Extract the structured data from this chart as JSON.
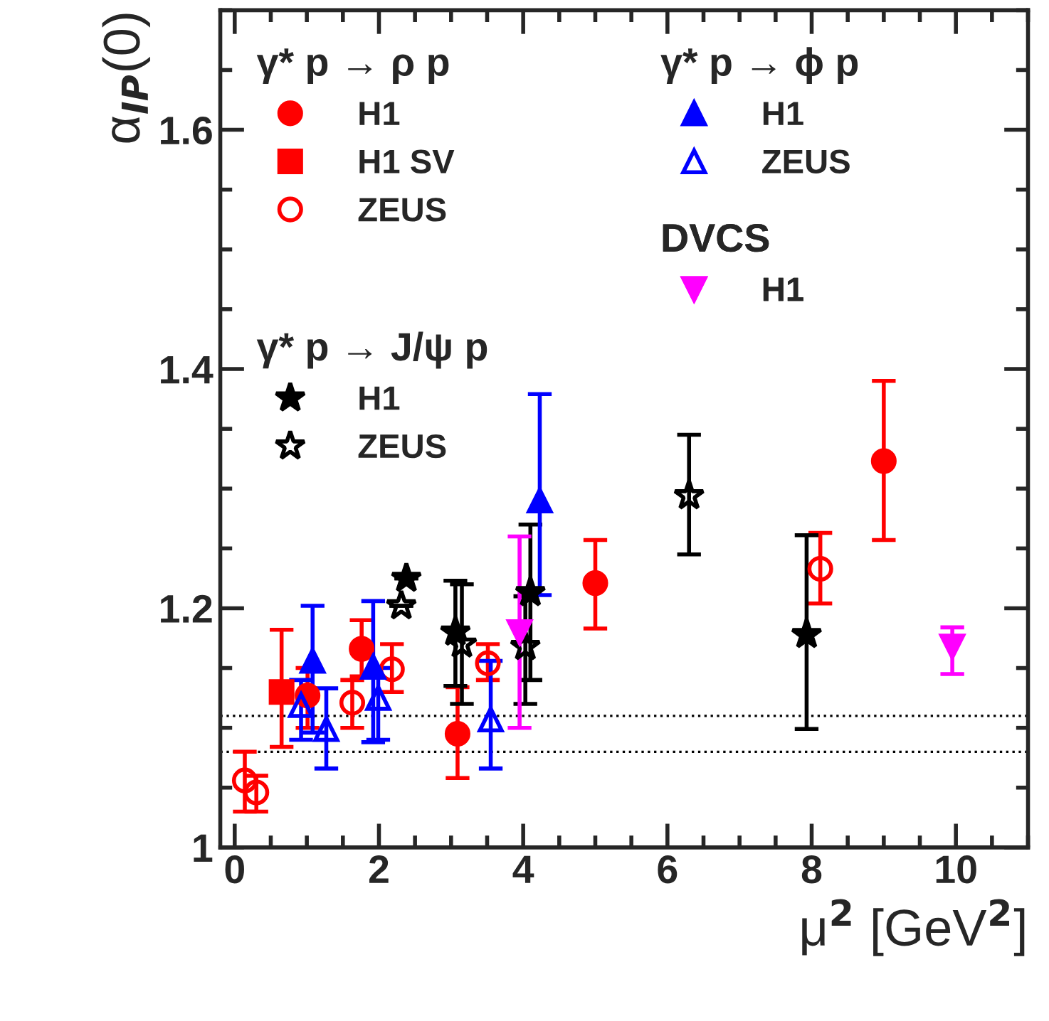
{
  "chart_data": {
    "type": "scatter",
    "xlabel": "μ$^{2}$ [GeV$^{2}$]",
    "ylabel": "α$_{IP}$(0)",
    "xlim": [
      -0.2,
      11
    ],
    "ylim": [
      1,
      1.7
    ],
    "xticks": [
      0,
      2,
      4,
      6,
      8,
      10
    ],
    "yticks": [
      1,
      1.2,
      1.4,
      1.6
    ],
    "grid": false,
    "legend": "top left",
    "annotations": [
      "γ* p → ρ p",
      "γ* p → J/ψ p",
      "γ* p → ϕ p",
      "DVCS"
    ],
    "ref_lines": [
      {
        "axis": "y",
        "value": 1.11,
        "label": null,
        "color": "#000000",
        "line_style": "dotted"
      },
      {
        "axis": "y",
        "value": 1.08,
        "label": null,
        "color": "#000000",
        "line_style": "dotted"
      }
    ],
    "series": [
      {
        "name": "H1",
        "color": "#ff0000",
        "marker": "circle",
        "x": [
          1.01,
          1.76,
          3.09,
          5.0,
          9.0
        ],
        "values": [
          1.127,
          1.166,
          1.095,
          1.221,
          1.323
        ],
        "errors": [
          [
            1.1,
            1.15
          ],
          [
            1.143,
            1.19
          ],
          [
            1.058,
            1.134
          ],
          [
            1.183,
            1.257
          ],
          [
            1.257,
            1.39
          ]
        ]
      },
      {
        "name": "H1 SV",
        "color": "#ff0000",
        "marker": "square",
        "x": [
          0.65
        ],
        "values": [
          1.13
        ],
        "errors": [
          [
            1.084,
            1.182
          ]
        ]
      },
      {
        "name": "ZEUS",
        "color": "#ff0000",
        "marker": "circle_open",
        "x": [
          0.14,
          0.3,
          1.63,
          2.18,
          3.51,
          8.12
        ],
        "values": [
          1.056,
          1.046,
          1.121,
          1.149,
          1.154,
          1.233
        ],
        "errors": [
          [
            1.03,
            1.08
          ],
          [
            1.03,
            1.06
          ],
          [
            1.1,
            1.14
          ],
          [
            1.13,
            1.17
          ],
          [
            1.14,
            1.17
          ],
          [
            1.204,
            1.263
          ]
        ]
      },
      {
        "name": "H1",
        "color": "#000000",
        "marker": "star",
        "x": [
          2.38,
          3.06,
          4.1,
          7.93
        ],
        "values": [
          1.225,
          1.18,
          1.213,
          1.178
        ],
        "errors": [
          null,
          [
            1.135,
            1.223
          ],
          [
            1.14,
            1.27
          ],
          [
            1.099,
            1.261
          ]
        ]
      },
      {
        "name": "ZEUS",
        "color": "#000000",
        "marker": "star_open",
        "x": [
          2.31,
          3.15,
          4.03,
          6.3
        ],
        "values": [
          1.202,
          1.17,
          1.168,
          1.294
        ],
        "errors": [
          null,
          [
            1.12,
            1.22
          ],
          [
            1.12,
            1.21
          ],
          [
            1.245,
            1.345
          ]
        ]
      },
      {
        "name": "H1",
        "color": "#0000ff",
        "marker": "triangle",
        "x": [
          1.08,
          1.92,
          4.23
        ],
        "values": [
          1.156,
          1.151,
          1.29
        ],
        "errors": [
          [
            1.096,
            1.202
          ],
          [
            1.088,
            1.206
          ],
          [
            1.211,
            1.379
          ]
        ]
      },
      {
        "name": "ZEUS",
        "color": "#0000ff",
        "marker": "triangle_open",
        "x": [
          0.92,
          1.27,
          1.99,
          3.55
        ],
        "values": [
          1.119,
          1.099,
          1.125,
          1.107
        ],
        "errors": [
          [
            1.09,
            1.14
          ],
          [
            1.066,
            1.133
          ],
          [
            1.09,
            1.15
          ],
          [
            1.066,
            1.156
          ]
        ]
      },
      {
        "name": "H1",
        "color": "#ff00ff",
        "marker": "triangle_down",
        "x": [
          3.95,
          9.95
        ],
        "values": [
          1.18,
          1.168
        ],
        "errors": [
          [
            1.1,
            1.26
          ],
          [
            1.145,
            1.184
          ]
        ]
      }
    ]
  }
}
